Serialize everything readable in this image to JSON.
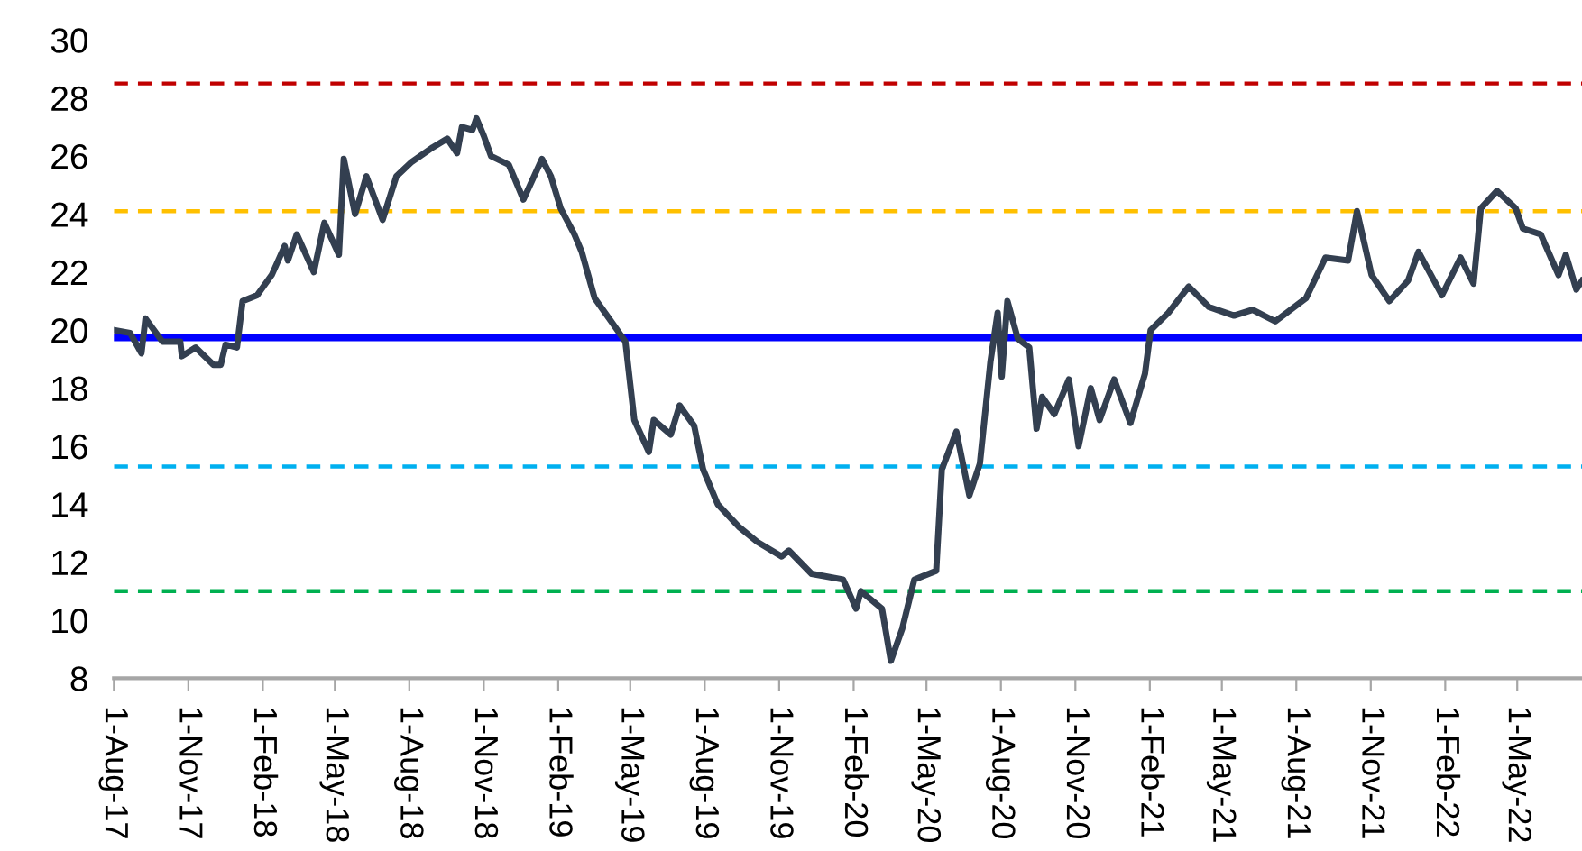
{
  "chart_data": {
    "type": "line",
    "x": [
      "2017-08-01",
      "2017-08-21",
      "2017-09-04",
      "2017-09-09",
      "2017-09-30",
      "2017-10-22",
      "2017-10-24",
      "2017-11-10",
      "2017-12-02",
      "2017-12-11",
      "2017-12-17",
      "2017-12-31",
      "2018-01-07",
      "2018-01-25",
      "2018-02-12",
      "2018-02-28",
      "2018-03-04",
      "2018-03-15",
      "2018-04-05",
      "2018-04-18",
      "2018-05-06",
      "2018-05-12",
      "2018-05-26",
      "2018-06-09",
      "2018-06-29",
      "2018-07-16",
      "2018-08-04",
      "2018-08-30",
      "2018-09-17",
      "2018-09-29",
      "2018-10-05",
      "2018-10-18",
      "2018-10-23",
      "2018-11-01",
      "2018-11-10",
      "2018-12-02",
      "2018-12-20",
      "2019-01-12",
      "2019-01-23",
      "2019-02-04",
      "2019-02-21",
      "2019-03-02",
      "2019-03-18",
      "2019-04-10",
      "2019-04-25",
      "2019-05-06",
      "2019-05-24",
      "2019-05-30",
      "2019-06-20",
      "2019-07-01",
      "2019-07-19",
      "2019-07-30",
      "2019-08-17",
      "2019-09-13",
      "2019-10-05",
      "2019-11-04",
      "2019-11-13",
      "2019-12-11",
      "2020-01-19",
      "2020-02-04",
      "2020-02-10",
      "2020-03-07",
      "2020-03-18",
      "2020-04-01",
      "2020-04-16",
      "2020-05-13",
      "2020-05-20",
      "2020-06-07",
      "2020-06-23",
      "2020-07-06",
      "2020-07-19",
      "2020-07-28",
      "2020-08-02",
      "2020-08-09",
      "2020-08-22",
      "2020-09-05",
      "2020-09-14",
      "2020-09-21",
      "2020-10-06",
      "2020-10-24",
      "2020-11-05",
      "2020-11-20",
      "2020-12-01",
      "2020-12-19",
      "2021-01-08",
      "2021-01-26",
      "2021-02-02",
      "2021-02-24",
      "2021-03-21",
      "2021-04-15",
      "2021-05-16",
      "2021-06-08",
      "2021-07-06",
      "2021-08-13",
      "2021-09-06",
      "2021-10-04",
      "2021-10-15",
      "2021-11-02",
      "2021-11-24",
      "2021-12-17",
      "2021-12-30",
      "2022-01-28",
      "2022-02-20",
      "2022-03-08",
      "2022-03-17",
      "2022-04-06",
      "2022-04-29",
      "2022-05-08",
      "2022-05-30",
      "2022-06-21",
      "2022-06-30",
      "2022-07-13",
      "2022-07-20"
    ],
    "series": [
      {
        "color": "#333f50",
        "values": [
          20.0,
          19.9,
          19.2,
          20.4,
          19.6,
          19.6,
          19.1,
          19.4,
          18.8,
          18.8,
          19.5,
          19.4,
          21.0,
          21.2,
          21.9,
          22.9,
          22.4,
          23.3,
          22.0,
          23.7,
          22.6,
          25.9,
          24.0,
          25.3,
          23.8,
          25.3,
          25.8,
          26.3,
          26.6,
          26.1,
          27.0,
          26.9,
          27.3,
          26.7,
          26.0,
          25.7,
          24.5,
          25.9,
          25.3,
          24.2,
          23.3,
          22.7,
          21.1,
          20.2,
          19.6,
          16.9,
          15.8,
          16.9,
          16.4,
          17.4,
          16.7,
          15.2,
          14.0,
          13.2,
          12.7,
          12.2,
          12.4,
          11.6,
          11.4,
          10.4,
          11.0,
          10.4,
          8.6,
          9.7,
          11.4,
          11.7,
          15.2,
          16.5,
          14.3,
          15.4,
          18.9,
          20.6,
          18.4,
          21.0,
          19.7,
          19.4,
          16.6,
          17.7,
          17.1,
          18.3,
          16.0,
          18.0,
          16.9,
          18.3,
          16.8,
          18.5,
          20.0,
          20.6,
          21.5,
          20.8,
          20.5,
          20.7,
          20.3,
          21.1,
          22.5,
          22.4,
          24.1,
          21.9,
          21.0,
          21.7,
          22.7,
          21.2,
          22.5,
          21.6,
          24.2,
          24.8,
          24.2,
          23.5,
          23.3,
          21.9,
          22.6,
          21.4,
          21.7
        ]
      }
    ],
    "xlim": [
      "2017-08-01",
      "2022-07-20"
    ],
    "xticks": [
      {
        "value": "2017-08-01",
        "label": "1-Aug-17"
      },
      {
        "value": "2017-11-01",
        "label": "1-Nov-17"
      },
      {
        "value": "2018-02-01",
        "label": "1-Feb-18"
      },
      {
        "value": "2018-05-01",
        "label": "1-May-18"
      },
      {
        "value": "2018-08-01",
        "label": "1-Aug-18"
      },
      {
        "value": "2018-11-01",
        "label": "1-Nov-18"
      },
      {
        "value": "2019-02-01",
        "label": "1-Feb-19"
      },
      {
        "value": "2019-05-01",
        "label": "1-May-19"
      },
      {
        "value": "2019-08-01",
        "label": "1-Aug-19"
      },
      {
        "value": "2019-11-01",
        "label": "1-Nov-19"
      },
      {
        "value": "2020-02-01",
        "label": "1-Feb-20"
      },
      {
        "value": "2020-05-01",
        "label": "1-May-20"
      },
      {
        "value": "2020-08-01",
        "label": "1-Aug-20"
      },
      {
        "value": "2020-11-01",
        "label": "1-Nov-20"
      },
      {
        "value": "2021-02-01",
        "label": "1-Feb-21"
      },
      {
        "value": "2021-05-01",
        "label": "1-May-21"
      },
      {
        "value": "2021-08-01",
        "label": "1-Aug-21"
      },
      {
        "value": "2021-11-01",
        "label": "1-Nov-21"
      },
      {
        "value": "2022-02-01",
        "label": "1-Feb-22"
      },
      {
        "value": "2022-05-01",
        "label": "1-May-22"
      }
    ],
    "ylim": [
      8,
      30
    ],
    "yticks": [
      8,
      10,
      12,
      14,
      16,
      18,
      20,
      22,
      24,
      26,
      28,
      30
    ],
    "ref_lines": [
      {
        "axis": "y",
        "value": 28.5,
        "color": "#c00000",
        "line_style": "dashed"
      },
      {
        "axis": "y",
        "value": 24.1,
        "color": "#ffc000",
        "line_style": "dashed"
      },
      {
        "axis": "y",
        "value": 19.75,
        "color": "#0000ff",
        "line_style": "solid"
      },
      {
        "axis": "y",
        "value": 15.3,
        "color": "#00b0f0",
        "line_style": "dashed"
      },
      {
        "axis": "y",
        "value": 11.0,
        "color": "#00b050",
        "line_style": "dashed"
      }
    ],
    "grid": false,
    "legend": false
  }
}
